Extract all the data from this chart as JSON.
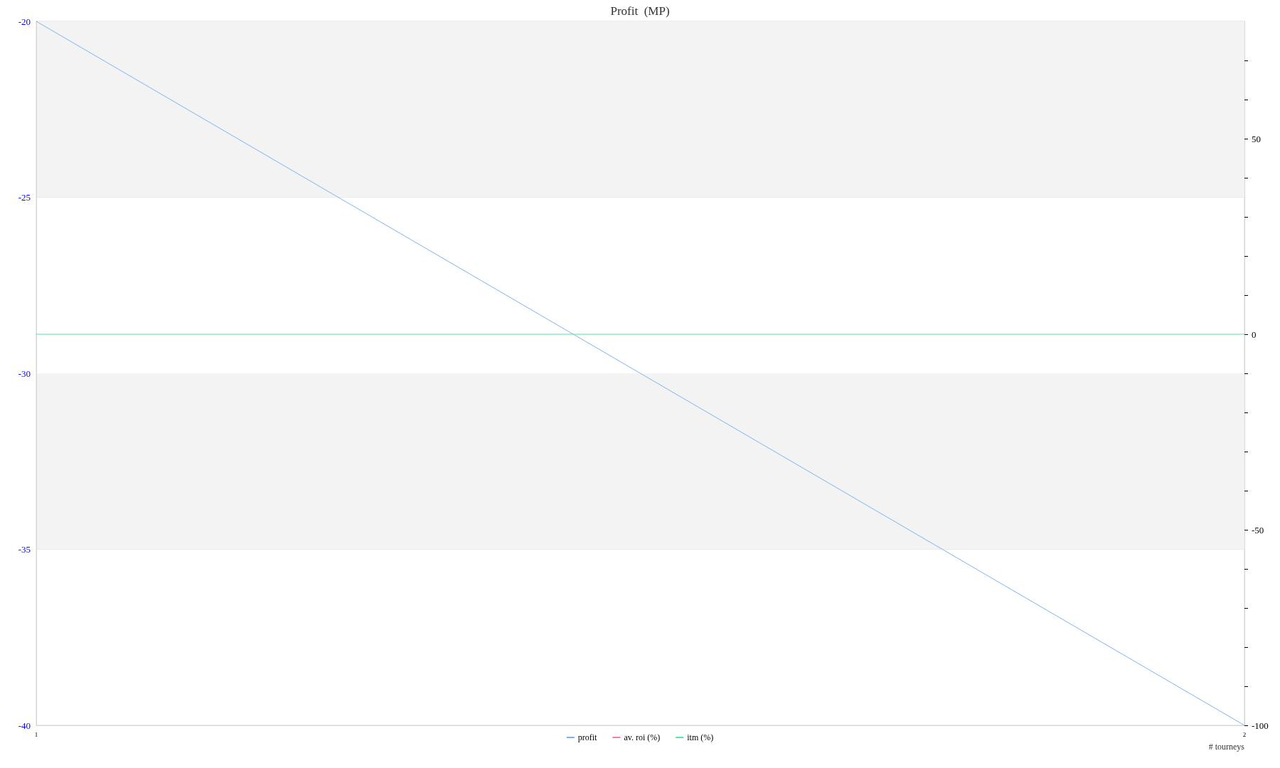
{
  "chart_data": {
    "type": "line",
    "title": "Profit  (MP)",
    "xlabel": "# tourneys",
    "x": [
      1,
      2
    ],
    "xlim": [
      1,
      2
    ],
    "xticks": [
      1,
      2
    ],
    "ylim": [
      -40,
      -20
    ],
    "yticks": [
      -40,
      -35,
      -30,
      -25,
      -20
    ],
    "y2lim": [
      -100,
      80
    ],
    "y2ticks": [
      -100,
      {
        "value": -90,
        "label": null
      },
      {
        "value": -80,
        "label": null
      },
      {
        "value": -70,
        "label": null
      },
      {
        "value": -60,
        "label": null
      },
      -50,
      {
        "value": -40,
        "label": null
      },
      {
        "value": -30,
        "label": null
      },
      {
        "value": -20,
        "label": null
      },
      {
        "value": -10,
        "label": null
      },
      0,
      {
        "value": 10,
        "label": null
      },
      {
        "value": 20,
        "label": null
      },
      {
        "value": 30,
        "label": null
      },
      {
        "value": 40,
        "label": null
      },
      50,
      {
        "value": 60,
        "label": null
      },
      {
        "value": 70,
        "label": null
      }
    ],
    "series": [
      {
        "name": "profit",
        "color": "#7cb5ec",
        "values": [
          -20,
          -40
        ]
      },
      {
        "name": "av. roi (%)",
        "color": "#f07fb8",
        "axis": "y2",
        "values": [
          null,
          null
        ]
      },
      {
        "name": "itm (%)",
        "color": "#5ee0a0",
        "axis": "y2",
        "values": [
          0,
          0
        ]
      }
    ],
    "bands": [
      {
        "axis": "y",
        "from": -25,
        "to": -20,
        "color": "#f3f3f3"
      },
      {
        "axis": "y",
        "from": -35,
        "to": -30,
        "color": "#f3f3f3"
      }
    ],
    "grid": "y",
    "legend": "bottom"
  }
}
